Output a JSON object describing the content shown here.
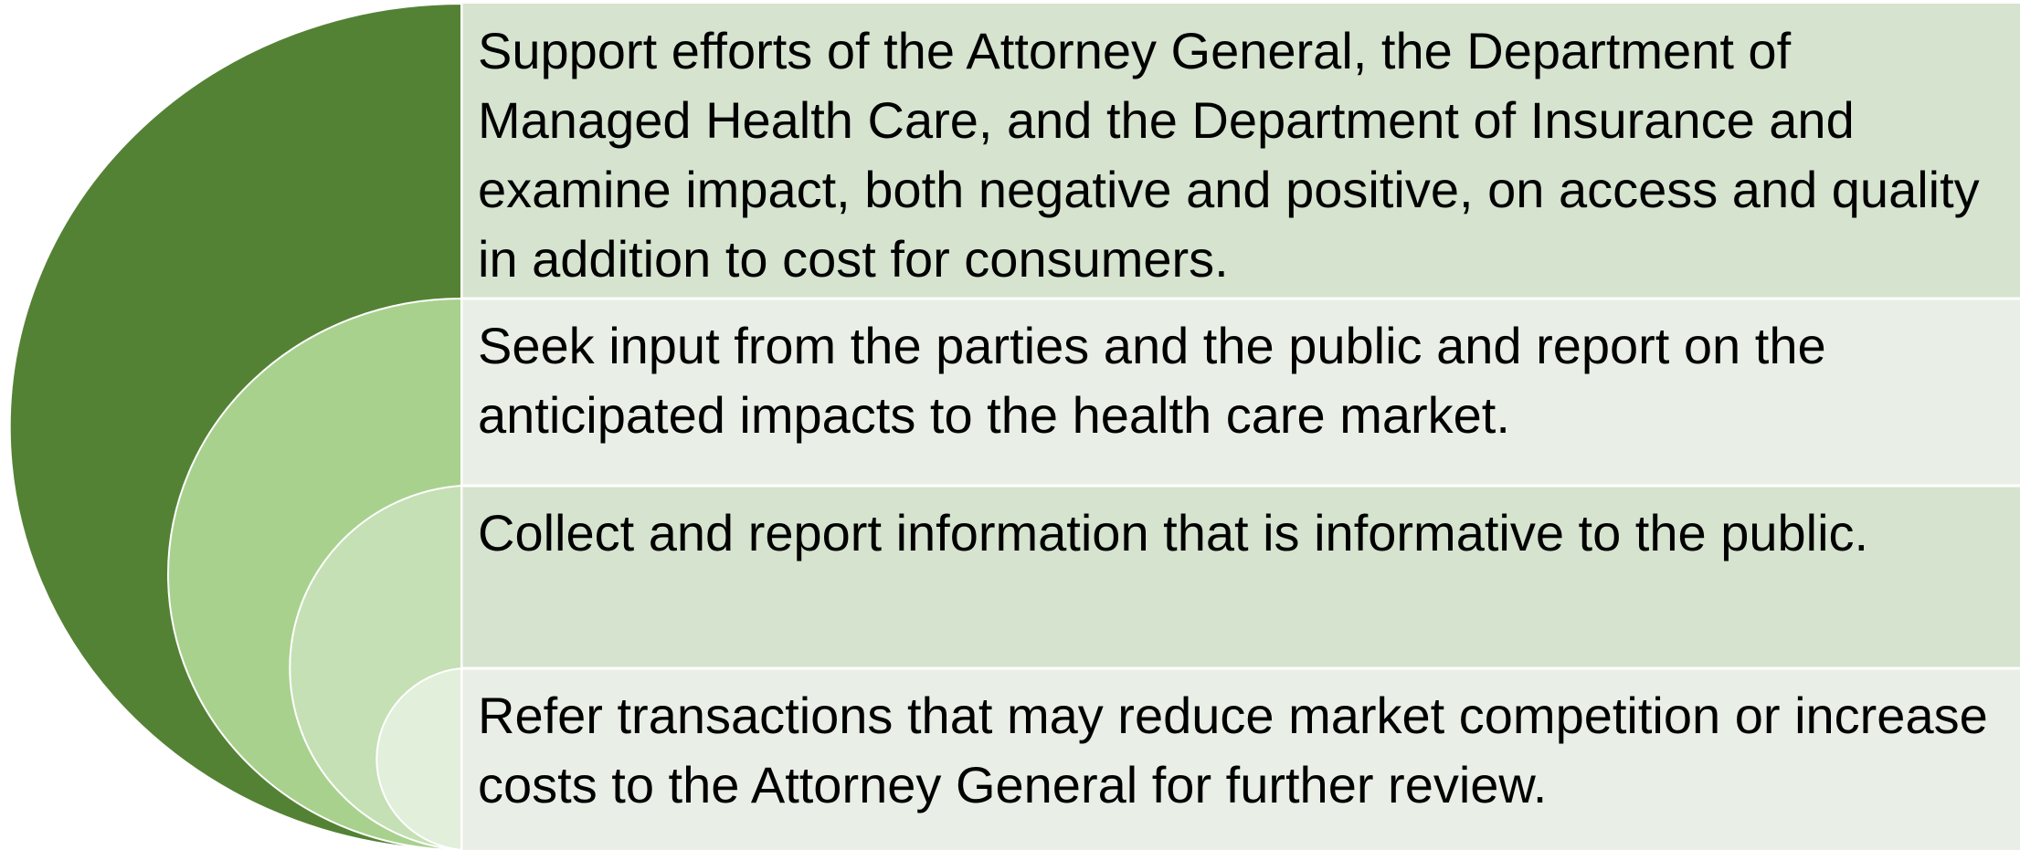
{
  "items": [
    {
      "text": "Support efforts of the Attorney General, the Department of Managed Health Care, and the Department of Insurance and examine impact, both negative and positive, on access and quality in addition to cost for consumers."
    },
    {
      "text": "Seek input from the parties and the public and report on the anticipated impacts to the health care market."
    },
    {
      "text": "Collect and report information that is informative to the public."
    },
    {
      "text": "Refer transactions that may reduce market competition or increase costs to the Attorney General for further review."
    }
  ]
}
